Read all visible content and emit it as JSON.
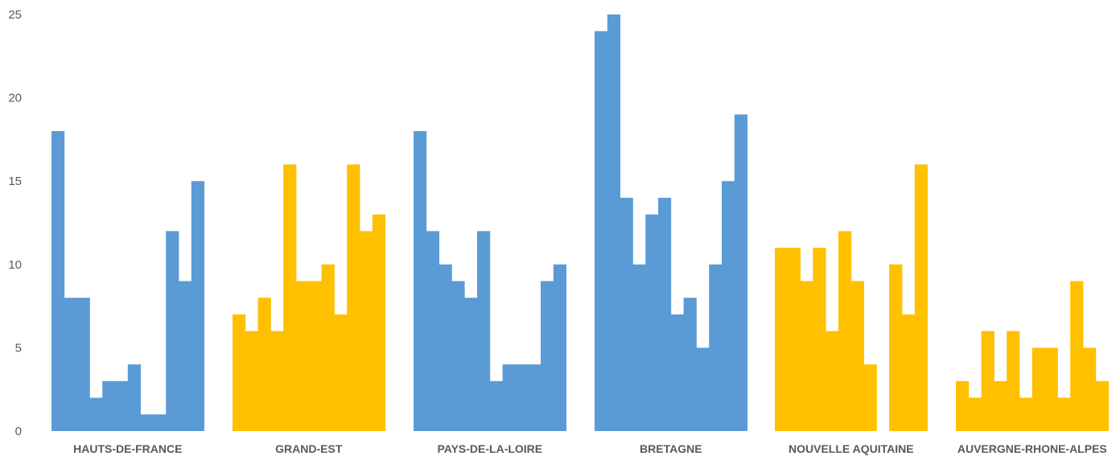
{
  "chart_data": {
    "type": "bar",
    "title": "",
    "xlabel": "",
    "ylabel": "",
    "ylim": [
      0,
      25
    ],
    "yticks": [
      0,
      5,
      10,
      15,
      20,
      25
    ],
    "grid": false,
    "legend": "none",
    "colors": {
      "blue": "#5B9BD5",
      "gold": "#FFC000"
    },
    "groups": [
      {
        "label": "HAUTS-DE-FRANCE",
        "color": "#5B9BD5",
        "values": [
          18,
          8,
          8,
          2,
          3,
          3,
          4,
          1,
          1,
          12,
          9,
          15
        ]
      },
      {
        "label": "GRAND-EST",
        "color": "#FFC000",
        "values": [
          7,
          6,
          8,
          6,
          16,
          9,
          9,
          10,
          7,
          16,
          12,
          13
        ]
      },
      {
        "label": "PAYS-DE-LA-LOIRE",
        "color": "#5B9BD5",
        "values": [
          18,
          12,
          10,
          9,
          8,
          12,
          3,
          4,
          4,
          4,
          9,
          10
        ]
      },
      {
        "label": "BRETAGNE",
        "color": "#5B9BD5",
        "values": [
          24,
          25,
          14,
          10,
          13,
          14,
          7,
          8,
          5,
          10,
          15,
          19
        ]
      },
      {
        "label": "NOUVELLE AQUITAINE",
        "color": "#FFC000",
        "values": [
          11,
          11,
          9,
          11,
          6,
          12,
          9,
          4,
          0,
          10,
          7,
          16
        ]
      },
      {
        "label": "AUVERGNE-RHONE-ALPES",
        "color": "#FFC000",
        "values": [
          3,
          2,
          6,
          3,
          6,
          2,
          5,
          5,
          2,
          9,
          5,
          3
        ]
      }
    ]
  }
}
